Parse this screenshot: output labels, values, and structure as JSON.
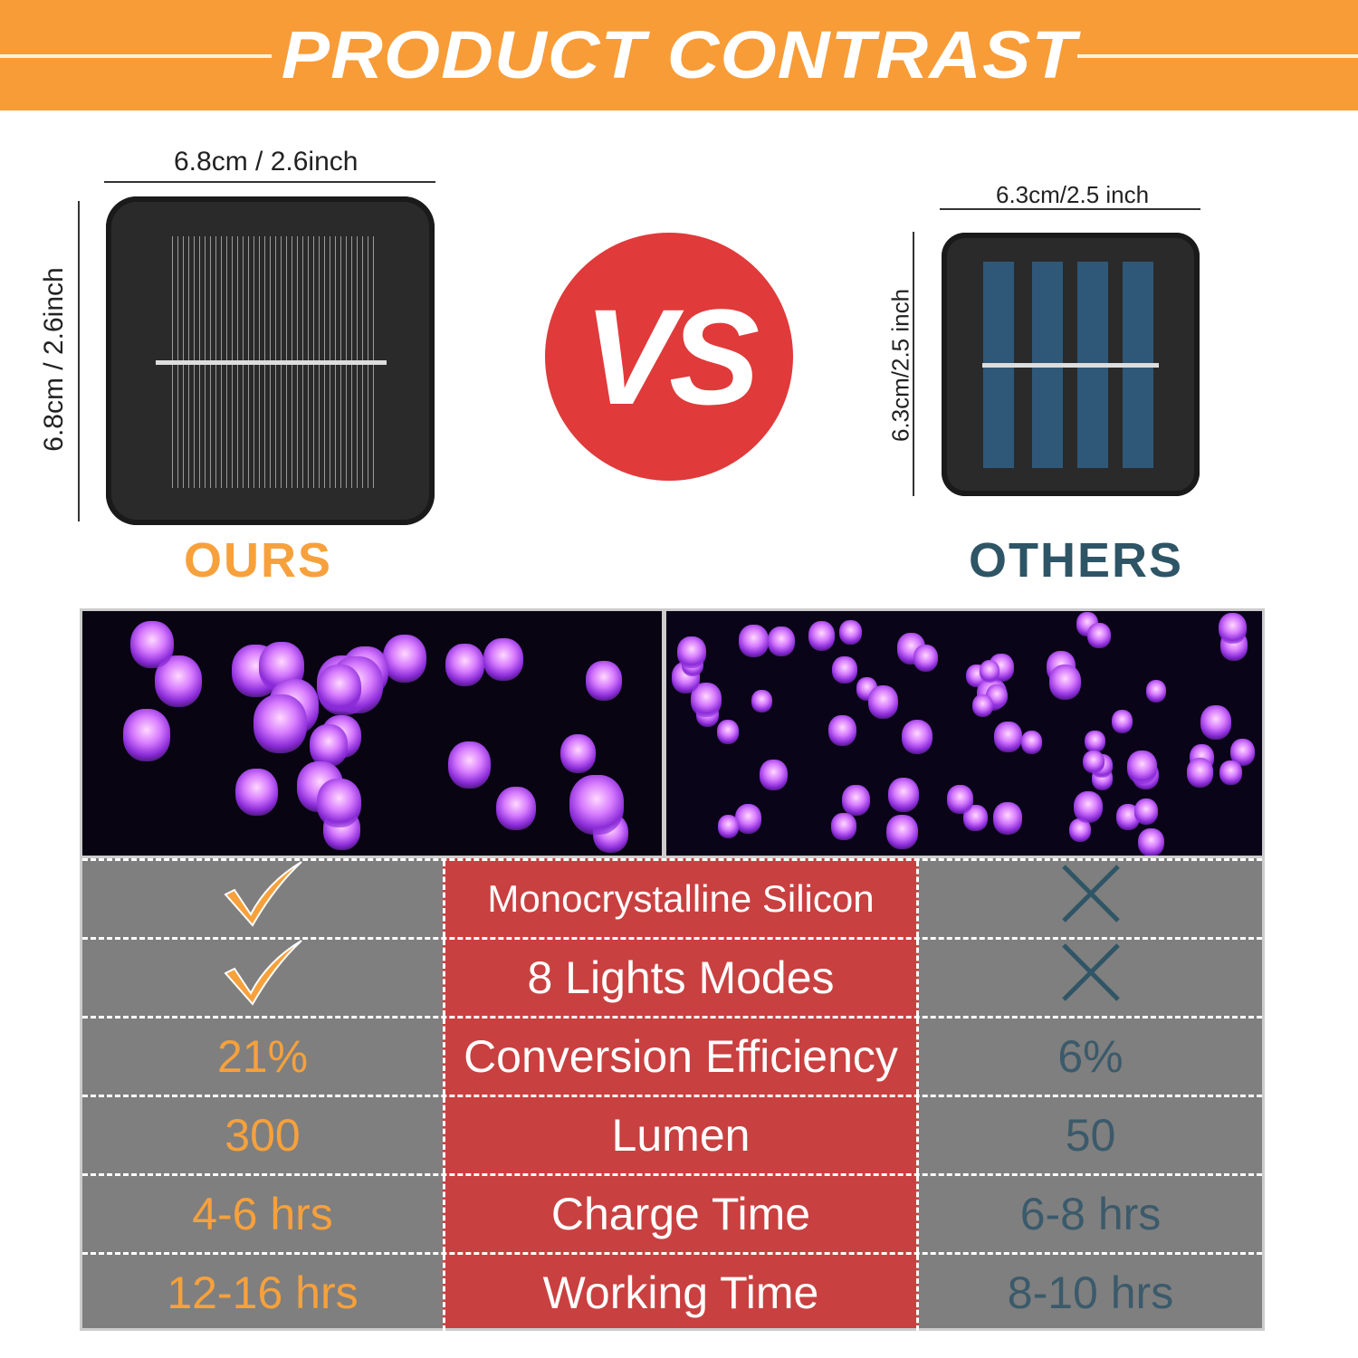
{
  "header": {
    "title": "PRODUCT CONTRAST"
  },
  "ours": {
    "label": "OURS",
    "width_dim": "6.8cm / 2.6inch",
    "height_dim": "6.8cm / 2.6inch"
  },
  "others": {
    "label": "OTHERS",
    "width_dim": "6.3cm/2.5 inch",
    "height_dim": "6.3cm/2.5 inch"
  },
  "vs": "VS",
  "colors": {
    "header": "#F89C38",
    "vs": "#E03A3A",
    "ours": "#F7A13C",
    "others": "#2E5566",
    "feature_col": "#C94040",
    "value_col": "#7F7F7F"
  },
  "table": {
    "rows": [
      {
        "ours": "",
        "ours_icon": "check-icon",
        "feature": "Monocrystalline Silicon",
        "others": "",
        "others_icon": "x-icon"
      },
      {
        "ours": "",
        "ours_icon": "check-icon",
        "feature": "8 Lights Modes",
        "others": "",
        "others_icon": "x-icon"
      },
      {
        "ours": "21%",
        "feature": "Conversion Efficiency",
        "others": "6%"
      },
      {
        "ours": "300",
        "feature": "Lumen",
        "others": "50"
      },
      {
        "ours": "4-6 hrs",
        "feature": "Charge Time",
        "others": "6-8 hrs"
      },
      {
        "ours": "12-16 hrs",
        "feature": "Working Time",
        "others": "8-10 hrs"
      }
    ]
  }
}
